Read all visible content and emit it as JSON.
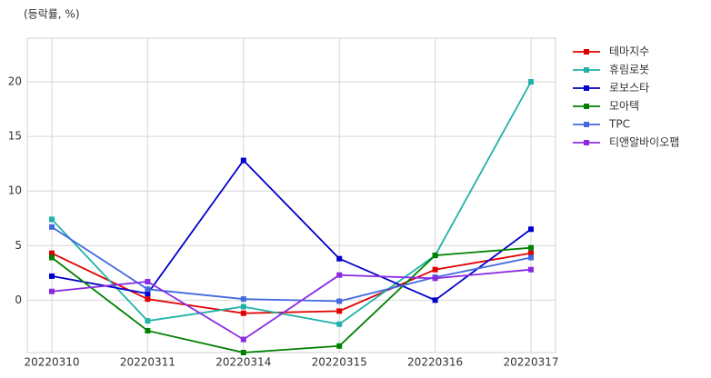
{
  "chart_data": {
    "type": "line",
    "title": "(등락률, %)",
    "categories": [
      "20220310",
      "20220311",
      "20220314",
      "20220315",
      "20220316",
      "20220317"
    ],
    "series": [
      {
        "name": "테마지수",
        "color": "#e00000",
        "values": [
          4.3,
          0.1,
          -1.2,
          -1.0,
          2.8,
          4.3
        ]
      },
      {
        "name": "휴림로봇",
        "color": "#20b2aa",
        "values": [
          7.4,
          -1.9,
          -0.6,
          -2.2,
          4.1,
          20.0
        ]
      },
      {
        "name": "로보스타",
        "color": "#0000cd",
        "values": [
          2.2,
          0.6,
          12.8,
          3.8,
          0.0,
          6.5
        ]
      },
      {
        "name": "모아텍",
        "color": "#008000",
        "values": [
          3.9,
          -2.8,
          -4.8,
          -4.2,
          4.1,
          4.8
        ]
      },
      {
        "name": "TPC",
        "color": "#4169e1",
        "values": [
          6.7,
          1.0,
          0.1,
          -0.1,
          2.1,
          3.9
        ]
      },
      {
        "name": "티앤알바이오팹",
        "color": "#8a2be2",
        "values": [
          0.8,
          1.7,
          -3.6,
          2.3,
          2.0,
          2.8
        ]
      }
    ],
    "ylim": [
      -4.8,
      24
    ],
    "yticks": [
      0,
      5,
      10,
      15,
      20
    ],
    "grid": true,
    "legend": "right"
  }
}
